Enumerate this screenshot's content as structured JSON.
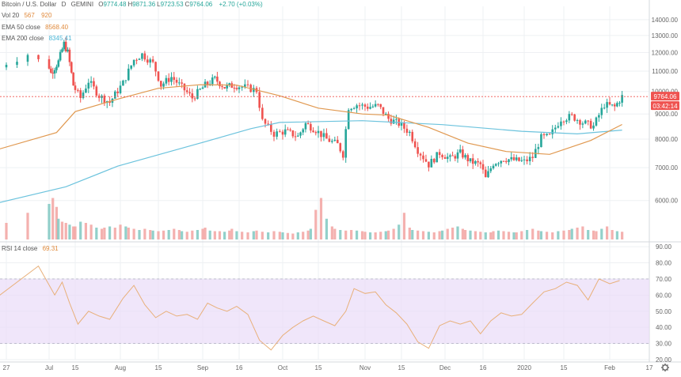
{
  "header": {
    "symbol": "Bitcoin / U.S. Dollar",
    "interval": "D",
    "exchange": "GEMINI",
    "ohlc": [
      {
        "label": "O",
        "value": "9774.48"
      },
      {
        "label": "H",
        "value": "9871.36"
      },
      {
        "label": "L",
        "value": "9723.53"
      },
      {
        "label": "C",
        "value": "9764.06"
      }
    ],
    "change": "+2.70 (+0.03%)"
  },
  "indicators": [
    {
      "label": "Vol 20",
      "values": [
        "567",
        "920"
      ],
      "color": "#e08a3c"
    },
    {
      "label": "EMA 50 close",
      "values": [
        "8568.40"
      ],
      "color": "#e08a3c"
    },
    {
      "label": "EMA 200 close",
      "values": [
        "8345.41"
      ],
      "color": "#49b6d6"
    }
  ],
  "rsi_legend": {
    "label": "RSI 14 close",
    "value": "69.31",
    "color": "#e08a3c"
  },
  "price_labels": {
    "last": "9764.06",
    "countdown": "03:42:14"
  },
  "colors": {
    "up": "#26a69a",
    "down": "#ef5350",
    "ema50": "#e0984f",
    "ema200": "#6cc3dd",
    "rsi_line": "#e8b07a",
    "rsi_band": "#e9dcf8",
    "grid": "#eef0f3"
  },
  "chart_data": [
    {
      "type": "candlestick",
      "title": "Bitcoin / U.S. Dollar",
      "ylim": [
        5000,
        14900
      ],
      "yticks": [
        6000,
        7000,
        8000,
        9000,
        10000,
        11000,
        12000,
        13000,
        14000
      ],
      "ytick_labels": [
        "6000.00",
        "7000.00",
        "8000.00",
        "9000.00",
        "10000.00",
        "11000.00",
        "12000.00",
        "13000.00",
        "14000.00"
      ],
      "x_tick_labels": [
        {
          "date": "2019-06-27",
          "label": "27"
        },
        {
          "date": "2019-07-01",
          "label": "Jul"
        },
        {
          "date": "2019-07-15",
          "label": "15"
        },
        {
          "date": "2019-08-01",
          "label": "Aug"
        },
        {
          "date": "2019-08-15",
          "label": "15"
        },
        {
          "date": "2019-09-01",
          "label": "Sep"
        },
        {
          "date": "2019-09-16",
          "label": "16"
        },
        {
          "date": "2019-10-01",
          "label": "Oct"
        },
        {
          "date": "2019-10-15",
          "label": "15"
        },
        {
          "date": "2019-11-01",
          "label": "Nov"
        },
        {
          "date": "2019-11-15",
          "label": "15"
        },
        {
          "date": "2019-12-01",
          "label": "Dec"
        },
        {
          "date": "2019-12-16",
          "label": "16"
        },
        {
          "date": "2020-01-01",
          "label": "2020"
        },
        {
          "date": "2020-01-15",
          "label": "15"
        },
        {
          "date": "2020-02-01",
          "label": "Feb"
        },
        {
          "date": "2020-02-17",
          "label": "17"
        }
      ],
      "ema50": [
        [
          "2019-06-26",
          7600
        ],
        [
          "2019-07-05",
          8250
        ],
        [
          "2019-07-15",
          9100
        ],
        [
          "2019-07-31",
          9650
        ],
        [
          "2019-08-15",
          10150
        ],
        [
          "2019-08-31",
          10320
        ],
        [
          "2019-09-15",
          10300
        ],
        [
          "2019-09-30",
          9800
        ],
        [
          "2019-10-15",
          9250
        ],
        [
          "2019-10-31",
          9000
        ],
        [
          "2019-11-10",
          8950
        ],
        [
          "2019-11-25",
          8450
        ],
        [
          "2019-12-10",
          7850
        ],
        [
          "2019-12-25",
          7550
        ],
        [
          "2020-01-10",
          7450
        ],
        [
          "2020-01-25",
          7950
        ],
        [
          "2020-02-06",
          8568
        ]
      ],
      "ema200": [
        [
          "2019-06-26",
          5920
        ],
        [
          "2019-07-10",
          6400
        ],
        [
          "2019-07-31",
          7050
        ],
        [
          "2019-08-31",
          7850
        ],
        [
          "2019-09-20",
          8400
        ],
        [
          "2019-09-30",
          8650
        ],
        [
          "2019-10-31",
          8720
        ],
        [
          "2019-11-30",
          8560
        ],
        [
          "2019-12-31",
          8300
        ],
        [
          "2020-01-20",
          8200
        ],
        [
          "2020-02-06",
          8345
        ]
      ]
    },
    {
      "type": "line",
      "title": "RSI 14 close",
      "ylim": [
        20,
        92
      ],
      "yticks": [
        20,
        30,
        40,
        50,
        60,
        70,
        80,
        90
      ],
      "ytick_labels": [
        "20.00",
        "30.00",
        "40.00",
        "50.00",
        "60.00",
        "70.00",
        "80.00",
        "90.00"
      ],
      "band": [
        30,
        70
      ],
      "points": [
        [
          "2019-06-26",
          58
        ],
        [
          "2019-06-30",
          78
        ],
        [
          "2019-07-04",
          60
        ],
        [
          "2019-07-08",
          68
        ],
        [
          "2019-07-12",
          55
        ],
        [
          "2019-07-16",
          42
        ],
        [
          "2019-07-20",
          50
        ],
        [
          "2019-07-24",
          47
        ],
        [
          "2019-07-28",
          45
        ],
        [
          "2019-08-02",
          58
        ],
        [
          "2019-08-06",
          66
        ],
        [
          "2019-08-10",
          54
        ],
        [
          "2019-08-14",
          46
        ],
        [
          "2019-08-18",
          50
        ],
        [
          "2019-08-22",
          47
        ],
        [
          "2019-08-26",
          48
        ],
        [
          "2019-08-30",
          45
        ],
        [
          "2019-09-03",
          55
        ],
        [
          "2019-09-07",
          52
        ],
        [
          "2019-09-11",
          50
        ],
        [
          "2019-09-15",
          53
        ],
        [
          "2019-09-19",
          48
        ],
        [
          "2019-09-23",
          32
        ],
        [
          "2019-09-27",
          26
        ],
        [
          "2019-10-01",
          35
        ],
        [
          "2019-10-05",
          40
        ],
        [
          "2019-10-09",
          44
        ],
        [
          "2019-10-13",
          47
        ],
        [
          "2019-10-17",
          44
        ],
        [
          "2019-10-21",
          41
        ],
        [
          "2019-10-25",
          50
        ],
        [
          "2019-10-28",
          64
        ],
        [
          "2019-11-01",
          61
        ],
        [
          "2019-11-05",
          62
        ],
        [
          "2019-11-09",
          54
        ],
        [
          "2019-11-13",
          49
        ],
        [
          "2019-11-17",
          42
        ],
        [
          "2019-11-21",
          31
        ],
        [
          "2019-11-25",
          27
        ],
        [
          "2019-11-29",
          41
        ],
        [
          "2019-12-03",
          44
        ],
        [
          "2019-12-07",
          42
        ],
        [
          "2019-12-11",
          44
        ],
        [
          "2019-12-15",
          36
        ],
        [
          "2019-12-19",
          44
        ],
        [
          "2019-12-23",
          49
        ],
        [
          "2019-12-27",
          47
        ],
        [
          "2019-12-31",
          48
        ],
        [
          "2020-01-04",
          55
        ],
        [
          "2020-01-08",
          62
        ],
        [
          "2020-01-12",
          64
        ],
        [
          "2020-01-16",
          68
        ],
        [
          "2020-01-20",
          66
        ],
        [
          "2020-01-24",
          57
        ],
        [
          "2020-01-28",
          70
        ],
        [
          "2020-02-01",
          67
        ],
        [
          "2020-02-05",
          69
        ]
      ]
    },
    {
      "type": "bar",
      "title": "Vol 20",
      "series_name": "volume",
      "values_relative": [
        0.2,
        0.28,
        0.45,
        0.6,
        0.7,
        0.55,
        0.35,
        0.3,
        0.28,
        0.25,
        0.22,
        0.22,
        0.3,
        0.28,
        0.25,
        0.2,
        0.18,
        0.2,
        0.22,
        0.2,
        0.25,
        0.22,
        0.2,
        0.18,
        0.16,
        0.18,
        0.16,
        0.15,
        0.14,
        0.15,
        0.16,
        0.18,
        0.16,
        0.14,
        0.13,
        0.15,
        0.16,
        0.18,
        0.2,
        0.15,
        0.14,
        0.14,
        0.13,
        0.15,
        0.18,
        0.14,
        0.13,
        0.12,
        0.14,
        0.15,
        0.13,
        0.12,
        0.14,
        0.13,
        0.12,
        0.11,
        0.1,
        0.12,
        0.13,
        0.15,
        0.18,
        0.5,
        0.7,
        0.35,
        0.22,
        0.18,
        0.16,
        0.15,
        0.16,
        0.15,
        0.14,
        0.13,
        0.12,
        0.12,
        0.13,
        0.14,
        0.15,
        0.18,
        0.25,
        0.45,
        0.2,
        0.16,
        0.15,
        0.14,
        0.13,
        0.12,
        0.14,
        0.15,
        0.18,
        0.2,
        0.22,
        0.18,
        0.16,
        0.15,
        0.14,
        0.13,
        0.12,
        0.12,
        0.14,
        0.15,
        0.14,
        0.13,
        0.12,
        0.12,
        0.14,
        0.16,
        0.18,
        0.15,
        0.14,
        0.13,
        0.12,
        0.14,
        0.15,
        0.16,
        0.18,
        0.2,
        0.22,
        0.16,
        0.15,
        0.14,
        0.18,
        0.22,
        0.16,
        0.14,
        0.13
      ]
    }
  ]
}
